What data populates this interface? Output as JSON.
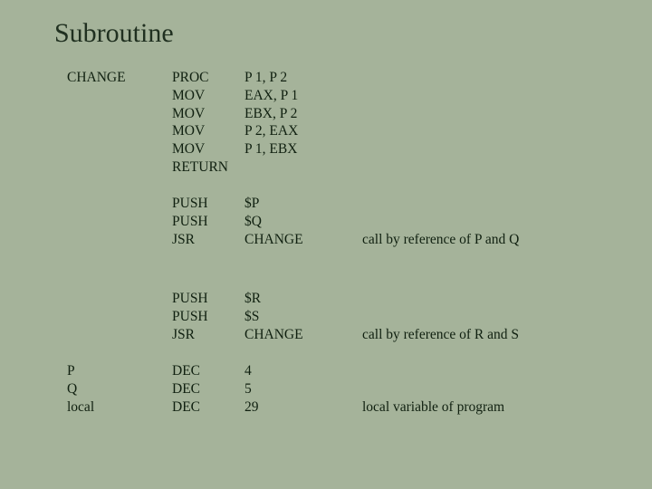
{
  "title": "Subroutine",
  "colors": {
    "background": "#a5b39a",
    "text": "#1a2a1a"
  },
  "typography": {
    "title_fontsize": 30,
    "body_fontsize": 15.5,
    "font_family": "Times New Roman"
  },
  "layout": {
    "col_label_width": 140,
    "col_op_width": 80,
    "col_arg_width": 130
  },
  "blocks": [
    {
      "gap_before": 0,
      "rows": [
        {
          "label": "CHANGE",
          "op": "PROC",
          "arg": "P 1, P 2",
          "comment": ""
        },
        {
          "label": "",
          "op": "MOV",
          "arg": "EAX, P 1",
          "comment": ""
        },
        {
          "label": "",
          "op": "MOV",
          "arg": "EBX, P 2",
          "comment": ""
        },
        {
          "label": "",
          "op": "MOV",
          "arg": "P 2, EAX",
          "comment": ""
        },
        {
          "label": "",
          "op": "MOV",
          "arg": "P 1, EBX",
          "comment": ""
        },
        {
          "label": "",
          "op": "RETURN",
          "arg": "",
          "comment": ""
        }
      ]
    },
    {
      "gap_before": 20,
      "rows": [
        {
          "label": "",
          "op": "PUSH",
          "arg": "$P",
          "comment": ""
        },
        {
          "label": "",
          "op": "PUSH",
          "arg": "$Q",
          "comment": ""
        },
        {
          "label": "",
          "op": "JSR",
          "arg": "CHANGE",
          "comment": "call by reference of P and Q"
        }
      ]
    },
    {
      "gap_before": 46,
      "rows": [
        {
          "label": "",
          "op": "PUSH",
          "arg": "$R",
          "comment": ""
        },
        {
          "label": "",
          "op": "PUSH",
          "arg": "$S",
          "comment": ""
        },
        {
          "label": "",
          "op": "JSR",
          "arg": "CHANGE",
          "comment": "call by reference of R and S"
        }
      ]
    },
    {
      "gap_before": 20,
      "rows": [
        {
          "label": "P",
          "op": "DEC",
          "arg": "4",
          "comment": ""
        },
        {
          "label": "Q",
          "op": "DEC",
          "arg": "5",
          "comment": ""
        },
        {
          "label": "local",
          "op": "DEC",
          "arg": "29",
          "comment": "local variable of program"
        }
      ]
    }
  ]
}
